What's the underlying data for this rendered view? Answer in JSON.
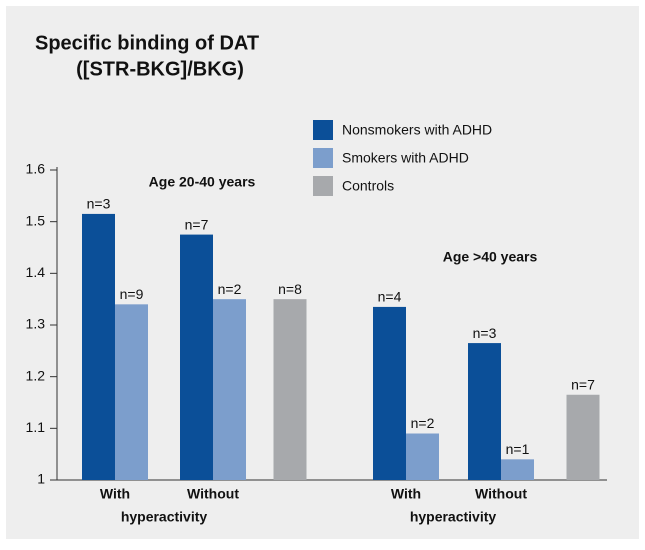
{
  "chart_data": {
    "type": "bar",
    "title": [
      "Specific binding of DAT",
      "([STR-BKG]/BKG)"
    ],
    "categories": [
      "With",
      "Without",
      null,
      "With",
      "Without",
      null
    ],
    "group_labels": [
      "Age 20-40 years",
      "Age >40 years"
    ],
    "group_sublabels": [
      "hyperactivity",
      "hyperactivity"
    ],
    "series": [
      {
        "name": "Nonsmokers with ADHD",
        "color": "#0b4f98",
        "values": [
          1.515,
          1.475,
          null,
          1.335,
          1.265,
          null
        ],
        "n_labels": [
          "n=3",
          "n=7",
          null,
          "n=4",
          "n=3",
          null
        ]
      },
      {
        "name": "Smokers with ADHD",
        "color": "#7c9ecc",
        "values": [
          1.34,
          1.35,
          null,
          1.09,
          1.04,
          null
        ],
        "n_labels": [
          "n=9",
          "n=2",
          null,
          "n=2",
          "n=1",
          null
        ]
      },
      {
        "name": "Controls",
        "color": "#a7a9ac",
        "values": [
          null,
          null,
          1.35,
          null,
          null,
          1.165
        ],
        "n_labels": [
          null,
          null,
          "n=8",
          null,
          null,
          "n=7"
        ]
      }
    ],
    "ylim": [
      1,
      1.6
    ],
    "yticks": [
      1,
      1.1,
      1.2,
      1.3,
      1.4,
      1.5,
      1.6
    ]
  }
}
